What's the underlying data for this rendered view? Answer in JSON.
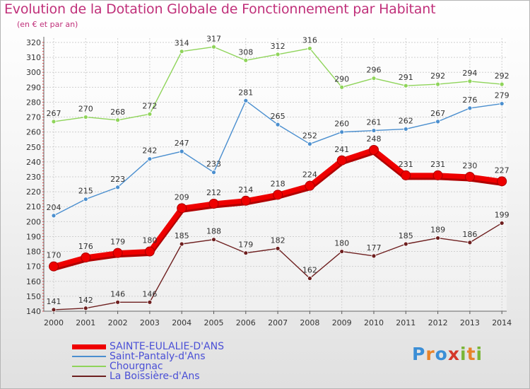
{
  "header": {
    "title": "Evolution de la Dotation Globale de Fonctionnement par Habitant",
    "subtitle": "(en € et par an)"
  },
  "logo": {
    "letters": [
      "P",
      "r",
      "o",
      "x",
      "i",
      "t",
      "i"
    ],
    "colors": [
      "#3b8ed6",
      "#e8832a",
      "#3b8ed6",
      "#d4372b",
      "#7ab536",
      "#e8832a",
      "#7ab536"
    ]
  },
  "chart_data": {
    "type": "line",
    "title": "Evolution de la Dotation Globale de Fonctionnement par Habitant",
    "subtitle": "(en € et par an)",
    "xlabel": "",
    "ylabel": "",
    "ylim": [
      140,
      320
    ],
    "y_ticks": [
      140,
      150,
      160,
      170,
      180,
      190,
      200,
      210,
      220,
      230,
      240,
      250,
      260,
      270,
      280,
      290,
      300,
      310,
      320
    ],
    "grid": true,
    "categories": [
      "2000",
      "2001",
      "2002",
      "2003",
      "2004",
      "2005",
      "2006",
      "2007",
      "2008",
      "2009",
      "2010",
      "2011",
      "2012",
      "2013",
      "2014"
    ],
    "series": [
      {
        "name": "SAINTE-EULALIE-D'ANS",
        "color": "#ee0000",
        "values": [
          170,
          176,
          179,
          180,
          209,
          212,
          214,
          218,
          224,
          241,
          248,
          231,
          231,
          230,
          227
        ]
      },
      {
        "name": "Saint-Pantaly-d'Ans",
        "color": "#4b8fcf",
        "values": [
          204,
          215,
          223,
          242,
          247,
          233,
          281,
          265,
          252,
          260,
          261,
          262,
          267,
          276,
          279
        ]
      },
      {
        "name": "Chourgnac",
        "color": "#8fd45a",
        "values": [
          267,
          270,
          268,
          272,
          314,
          317,
          308,
          312,
          316,
          290,
          296,
          291,
          292,
          294,
          292
        ]
      },
      {
        "name": "La Boissière-d'Ans",
        "color": "#6e1f1f",
        "values": [
          141,
          142,
          146,
          146,
          185,
          188,
          179,
          182,
          162,
          180,
          177,
          185,
          189,
          186,
          199
        ]
      }
    ]
  }
}
